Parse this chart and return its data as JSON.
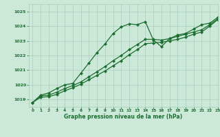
{
  "title": "Graphe pression niveau de la mer (hPa)",
  "background_color": "#cce8d8",
  "grid_color": "#a8ccbc",
  "line_color": "#1a6e2e",
  "xlim": [
    -0.5,
    23
  ],
  "ylim": [
    1018.5,
    1025.5
  ],
  "yticks": [
    1019,
    1020,
    1021,
    1022,
    1023,
    1024,
    1025
  ],
  "xticks": [
    0,
    1,
    2,
    3,
    4,
    5,
    6,
    7,
    8,
    9,
    10,
    11,
    12,
    13,
    14,
    15,
    16,
    17,
    18,
    19,
    20,
    21,
    22,
    23
  ],
  "series1_x": [
    0,
    1,
    2,
    3,
    4,
    5,
    6,
    7,
    8,
    9,
    10,
    11,
    12,
    13,
    14,
    15,
    16,
    17,
    18,
    19,
    20,
    21,
    22,
    23
  ],
  "series1_y": [
    1018.8,
    1019.3,
    1019.45,
    1019.75,
    1020.0,
    1020.1,
    1020.8,
    1021.5,
    1022.2,
    1022.8,
    1023.5,
    1023.95,
    1024.15,
    1024.1,
    1024.3,
    1023.05,
    1022.6,
    1023.15,
    1023.4,
    1023.5,
    1023.8,
    1024.1,
    1024.2,
    1024.6
  ],
  "series2_x": [
    0,
    1,
    2,
    3,
    4,
    5,
    6,
    7,
    8,
    9,
    10,
    11,
    12,
    13,
    14,
    15,
    16,
    17,
    18,
    19,
    20,
    21,
    22,
    23
  ],
  "series2_y": [
    1018.8,
    1019.25,
    1019.3,
    1019.5,
    1019.75,
    1019.95,
    1020.2,
    1020.55,
    1020.9,
    1021.25,
    1021.65,
    1022.0,
    1022.4,
    1022.75,
    1023.1,
    1023.1,
    1023.05,
    1023.15,
    1023.3,
    1023.45,
    1023.6,
    1023.75,
    1024.1,
    1024.5
  ],
  "series3_x": [
    0,
    1,
    2,
    3,
    4,
    5,
    6,
    7,
    8,
    9,
    10,
    11,
    12,
    13,
    14,
    15,
    16,
    17,
    18,
    19,
    20,
    21,
    22,
    23
  ],
  "series3_y": [
    1018.8,
    1019.15,
    1019.2,
    1019.35,
    1019.6,
    1019.8,
    1020.05,
    1020.35,
    1020.65,
    1020.95,
    1021.3,
    1021.65,
    1022.05,
    1022.4,
    1022.8,
    1022.85,
    1022.9,
    1023.0,
    1023.1,
    1023.25,
    1023.45,
    1023.6,
    1024.0,
    1024.45
  ]
}
